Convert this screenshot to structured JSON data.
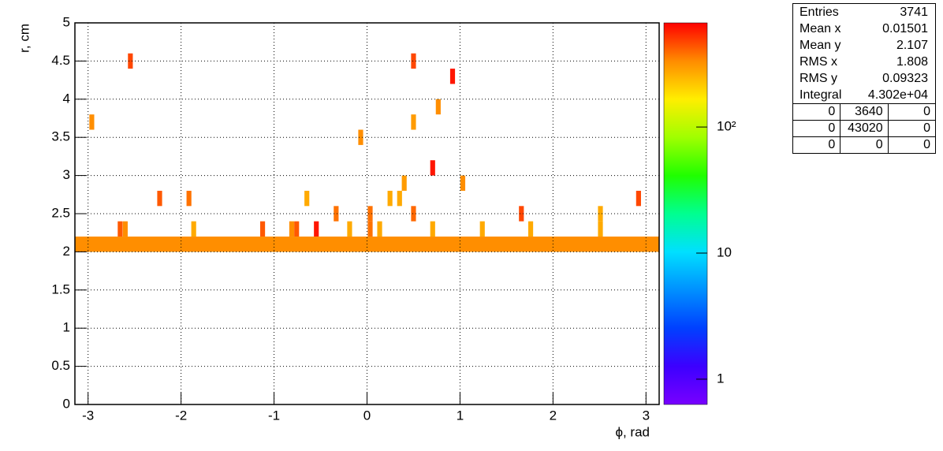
{
  "chart_data": {
    "type": "hist2d",
    "xlabel": "ϕ, rad",
    "ylabel": "r, cm",
    "xlim": [
      -3.1416,
      3.1416
    ],
    "ylim": [
      0,
      5
    ],
    "xticks": [
      -3,
      -2,
      -1,
      0,
      1,
      2,
      3
    ],
    "yticks": [
      0,
      0.5,
      1,
      1.5,
      2,
      2.5,
      3,
      3.5,
      4,
      4.5,
      5
    ],
    "grid": true,
    "log_z": true,
    "zlim": [
      0.63,
      670
    ],
    "zticks": [
      1,
      10,
      {
        "value": 100,
        "label": "10²"
      }
    ],
    "palette": [
      "#7800ff",
      "#3c00ff",
      "#0040ff",
      "#0090ff",
      "#00e0ff",
      "#00ff90",
      "#20ff00",
      "#a0ff00",
      "#ffee00",
      "#ff8c00",
      "#ff0000"
    ],
    "bin_width": [
      0.0524,
      0.2
    ],
    "cells": {
      "x": [
        -2.545,
        0.5,
        0.92,
        0.766,
        -2.96,
        0.5,
        -0.068,
        0.706,
        0.4,
        1.03,
        -2.23,
        -1.915,
        -0.647,
        0.247,
        0.35,
        2.92,
        -0.332,
        0.034,
        0.5,
        1.66,
        2.51,
        -2.655,
        -2.6,
        -1.864,
        -1.123,
        -0.81,
        -0.757,
        -0.545,
        -0.187,
        0.034,
        0.136,
        0.706,
        1.24,
        1.76,
        2.51
      ],
      "y": [
        4.5,
        4.5,
        4.3,
        3.9,
        3.7,
        3.7,
        3.5,
        3.1,
        2.9,
        2.9,
        2.7,
        2.7,
        2.7,
        2.7,
        2.7,
        2.7,
        2.5,
        2.5,
        2.5,
        2.5,
        2.5,
        2.3,
        2.3,
        2.3,
        2.3,
        2.3,
        2.3,
        2.3,
        2.3,
        2.3,
        2.3,
        2.3,
        2.3,
        2.3,
        2.3
      ],
      "values": [
        470,
        470,
        600,
        330,
        330,
        300,
        330,
        600,
        300,
        330,
        430,
        380,
        270,
        270,
        270,
        470,
        380,
        380,
        400,
        470,
        270,
        430,
        330,
        270,
        430,
        330,
        430,
        600,
        270,
        380,
        270,
        270,
        270,
        270,
        270
      ]
    },
    "full_rows": {
      "y": [
        2.1
      ],
      "values": [
        330
      ]
    }
  },
  "stats": {
    "rows": [
      [
        "Entries",
        "3741"
      ],
      [
        "Mean x",
        "0.01501"
      ],
      [
        "Mean y",
        "2.107"
      ],
      [
        "RMS x",
        "1.808"
      ],
      [
        "RMS y",
        "0.09323"
      ],
      [
        "Integral",
        "4.302e+04"
      ]
    ],
    "grid": [
      [
        "0",
        "3640",
        "0"
      ],
      [
        "0",
        "43020",
        "0"
      ],
      [
        "0",
        "0",
        "0"
      ]
    ]
  }
}
